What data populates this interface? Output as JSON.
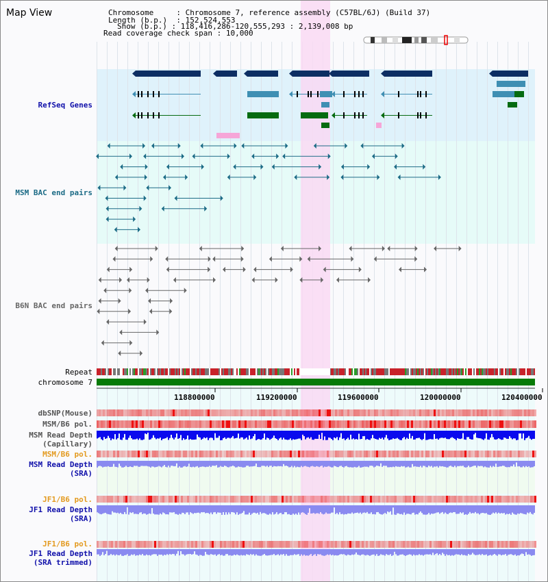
{
  "view_title": "Map View",
  "info": {
    "chromosome_key": "Chromosome",
    "chromosome_val": "Chromosome 7, reference assembly (C57BL/6J) (Build 37)",
    "length_key": "Length (b.p.)",
    "length_val": "152,524,553",
    "show_key": "Show (b.p.)",
    "show_val": "118,416,286-120,555,293 : 2,139,008 bp",
    "span_key": "Read coverage check span",
    "span_val": "10,000"
  },
  "tracks": {
    "refseq": "RefSeq Genes",
    "msm_bac": "MSM BAC end pairs",
    "b6n_bac": "B6N BAC end pairs",
    "repeat": "Repeat",
    "chromosome": "chromosome 7",
    "dbsnp": "dbSNP(Mouse)",
    "msm_b6_pol_1": "MSM/B6 pol.",
    "msm_depth_cap_1": "MSM Read Depth",
    "msm_depth_cap_2": "(Capillary)",
    "msm_b6_pol_2": "MSM/B6 pol.",
    "msm_depth_sra_1": "MSM Read Depth",
    "msm_depth_sra_2": "(SRA)",
    "jf1_b6_pol_1": "JF1/B6 pol.",
    "jf1_depth_sra_1": "JF1 Read Depth",
    "jf1_depth_sra_2": "(SRA)",
    "jf1_b6_pol_2": "JF1/B6 pol.",
    "jf1_depth_trim_1": "JF1 Read Depth",
    "jf1_depth_trim_2": "(SRA trimmed)"
  },
  "axis": {
    "ticks": [
      "118800000",
      "119200000",
      "119600000",
      "120000000",
      "120400000"
    ]
  },
  "colors": {
    "refseq_bg": "#dff2fb",
    "bac_bg": "#e6fbf8",
    "highlight": "#f9d9f3",
    "gene_dark": "#0d2e63",
    "gene_mid": "#3f8fb3",
    "gene_green": "#066b10",
    "msm_pair": "#1c6b86",
    "b6n_pair": "#666666",
    "depth_blue": "#0a0aee",
    "depth_light": "#8a8af0",
    "label_blue": "#1010aa",
    "label_orange": "#e39a1f",
    "label_teal": "#1c6b86"
  }
}
